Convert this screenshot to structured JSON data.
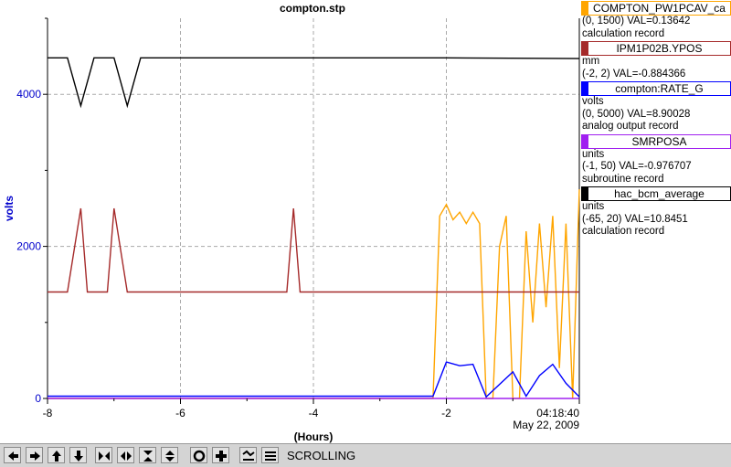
{
  "chart_data": {
    "type": "line",
    "title": "compton.stp",
    "ylabel": "volts",
    "xlabel": "(Hours)",
    "x_ticks": [
      "-8",
      "-6",
      "-4",
      "-2",
      "04:18:40"
    ],
    "y_ticks": [
      "0",
      "2000",
      "4000"
    ],
    "time_label": "04:18:40",
    "date_label": "May 22, 2009",
    "xlim": [
      -8,
      0
    ],
    "ylim": [
      0,
      5000
    ],
    "grid": true,
    "legend_position": "right",
    "series": [
      {
        "name": "COMPTON_PW1PCAV_ca",
        "color": "#ffa500",
        "range": "(0, 1500)",
        "val": "VAL=0.13642",
        "record": "calculation record",
        "units": "",
        "points": [
          [
            -8,
            0
          ],
          [
            -2.2,
            0
          ],
          [
            -2.1,
            2400
          ],
          [
            -2.0,
            2550
          ],
          [
            -1.9,
            2350
          ],
          [
            -1.8,
            2450
          ],
          [
            -1.7,
            2300
          ],
          [
            -1.6,
            2450
          ],
          [
            -1.5,
            2300
          ],
          [
            -1.4,
            0
          ],
          [
            -1.3,
            0
          ],
          [
            -1.2,
            2000
          ],
          [
            -1.1,
            2400
          ],
          [
            -1.0,
            0
          ],
          [
            -0.9,
            0
          ],
          [
            -0.8,
            2200
          ],
          [
            -0.7,
            1000
          ],
          [
            -0.6,
            2300
          ],
          [
            -0.5,
            1200
          ],
          [
            -0.4,
            2400
          ],
          [
            -0.3,
            400
          ],
          [
            -0.2,
            2300
          ],
          [
            -0.1,
            0
          ],
          [
            0,
            2750
          ]
        ]
      },
      {
        "name": "IPM1P02B.YPOS",
        "color": "#a52a2a",
        "range": "(-2, 2)",
        "val": "VAL=-0.884366",
        "record": "",
        "units": "mm",
        "points": [
          [
            -8,
            1400
          ],
          [
            -7.7,
            1400
          ],
          [
            -7.5,
            2500
          ],
          [
            -7.4,
            1400
          ],
          [
            -7.1,
            1400
          ],
          [
            -7.0,
            2500
          ],
          [
            -6.8,
            1400
          ],
          [
            -4.4,
            1400
          ],
          [
            -4.3,
            2500
          ],
          [
            -4.2,
            1400
          ],
          [
            -2.0,
            1400
          ],
          [
            0,
            1400
          ]
        ]
      },
      {
        "name": "compton:RATE_G",
        "color": "#0000ff",
        "range": "(0, 5000)",
        "val": "VAL=8.90028",
        "record": "analog output record",
        "units": "volts",
        "points": [
          [
            -8,
            30
          ],
          [
            -2.2,
            30
          ],
          [
            -2.0,
            480
          ],
          [
            -1.8,
            430
          ],
          [
            -1.6,
            450
          ],
          [
            -1.4,
            20
          ],
          [
            -1.0,
            350
          ],
          [
            -0.8,
            30
          ],
          [
            -0.6,
            300
          ],
          [
            -0.4,
            450
          ],
          [
            -0.2,
            200
          ],
          [
            0,
            20
          ]
        ]
      },
      {
        "name": "SMRPOSA",
        "color": "#a020f0",
        "range": "(-1, 50)",
        "val": "VAL=-0.976707",
        "record": "subroutine record",
        "units": "units",
        "points": [
          [
            -8,
            0
          ],
          [
            0,
            0
          ]
        ]
      },
      {
        "name": "hac_bcm_average",
        "color": "#000000",
        "range": "(-65, 20)",
        "val": "VAL=10.8451",
        "record": "calculation record",
        "units": "units",
        "points": [
          [
            -8,
            4480
          ],
          [
            -7.7,
            4480
          ],
          [
            -7.5,
            3850
          ],
          [
            -7.3,
            4480
          ],
          [
            -7.0,
            4480
          ],
          [
            -6.8,
            3850
          ],
          [
            -6.6,
            4480
          ],
          [
            -2.0,
            4480
          ],
          [
            0,
            4470
          ]
        ]
      }
    ]
  },
  "toolbar": {
    "status": "SCROLLING",
    "buttons": [
      "arrow-left-icon",
      "arrow-right-icon",
      "arrow-up-icon",
      "arrow-down-icon",
      "zoom-in-horizontal-icon",
      "zoom-out-horizontal-icon",
      "zoom-in-vertical-icon",
      "zoom-out-vertical-icon",
      "autoscale-icon",
      "add-icon",
      "scroll-mode-icon",
      "print-icon"
    ]
  }
}
